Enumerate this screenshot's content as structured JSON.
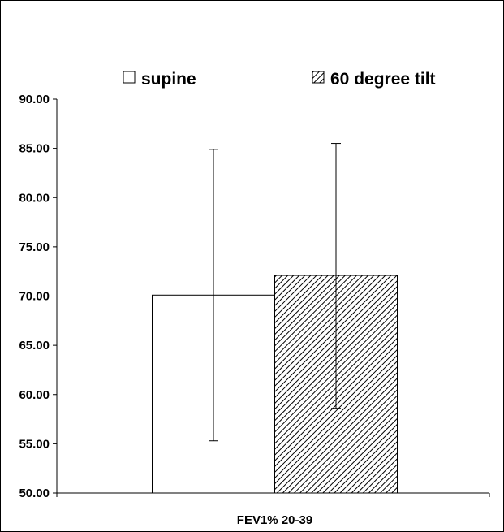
{
  "chart_data": {
    "type": "bar",
    "title": "",
    "xlabel": "",
    "ylabel": "",
    "categories": [
      "FEV1% 20-39"
    ],
    "ylim": [
      50,
      90
    ],
    "yticks": [
      "50.00",
      "55.00",
      "60.00",
      "65.00",
      "70.00",
      "75.00",
      "80.00",
      "85.00",
      "90.00"
    ],
    "ytick_values": [
      50,
      55,
      60,
      65,
      70,
      75,
      80,
      85,
      90
    ],
    "series": [
      {
        "name": "supine",
        "values": [
          70.1
        ],
        "error_low": [
          55.3
        ],
        "error_high": [
          84.9
        ],
        "fill": "#ffffff",
        "pattern": "none"
      },
      {
        "name": "60 degree tilt",
        "values": [
          72.1
        ],
        "error_low": [
          58.6
        ],
        "error_high": [
          85.5
        ],
        "fill": "#ffffff",
        "pattern": "diagonal-hatch"
      }
    ],
    "grid": false,
    "legend_position": "top",
    "colors": {
      "axis": "#000000",
      "bar_stroke": "#000000",
      "hatch": "#000000",
      "frame": "#000000"
    }
  }
}
